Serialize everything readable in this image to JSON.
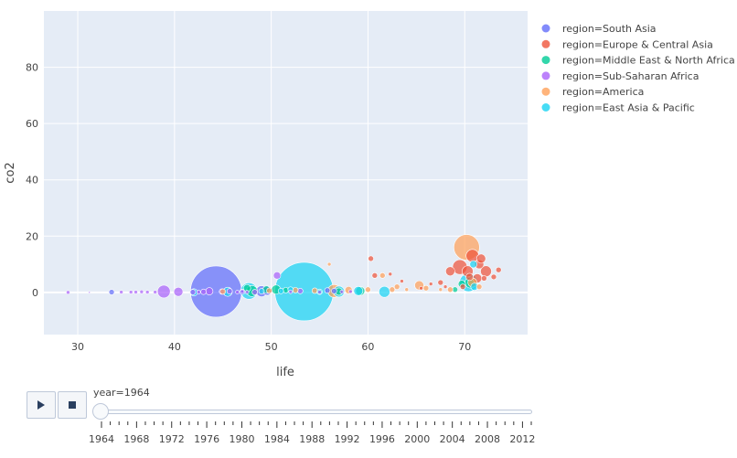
{
  "chart_data": {
    "type": "scatter",
    "title": "",
    "xlabel": "life",
    "ylabel": "co2",
    "xlim": [
      26.5,
      76.5
    ],
    "ylim": [
      -15,
      100
    ],
    "x_ticks": [
      30,
      40,
      50,
      60,
      70
    ],
    "y_ticks": [
      0,
      20,
      40,
      60,
      80
    ],
    "grid": true,
    "legend_position": "right",
    "series": [
      {
        "name": "region=South Asia",
        "color": "#636efa",
        "points": [
          [
            33.5,
            0.1,
            3
          ],
          [
            44.3,
            0.3,
            28
          ],
          [
            49.0,
            0.4,
            6
          ],
          [
            49.6,
            0.6,
            5
          ],
          [
            55.8,
            0.7,
            3
          ],
          [
            56.5,
            0.5,
            3
          ],
          [
            47.0,
            0.2,
            3
          ]
        ]
      },
      {
        "name": "region=Europe & Central Asia",
        "color": "#ef553b",
        "points": [
          [
            60.3,
            12.0,
            3
          ],
          [
            60.7,
            6.0,
            3
          ],
          [
            62.3,
            6.5,
            2
          ],
          [
            65.5,
            1.5,
            2
          ],
          [
            67.5,
            3.5,
            3
          ],
          [
            68.5,
            7.5,
            5
          ],
          [
            69.5,
            9.0,
            8
          ],
          [
            70.3,
            7.5,
            6
          ],
          [
            70.8,
            13.0,
            7
          ],
          [
            71.3,
            5.0,
            5
          ],
          [
            71.5,
            10.0,
            5
          ],
          [
            71.7,
            12.0,
            5
          ],
          [
            72.2,
            7.5,
            6
          ],
          [
            72.0,
            5.0,
            3
          ],
          [
            73.0,
            5.5,
            3
          ],
          [
            73.5,
            8.0,
            3
          ],
          [
            69.8,
            2.0,
            3
          ],
          [
            70.5,
            5.5,
            4
          ],
          [
            63.5,
            4.0,
            2
          ],
          [
            66.5,
            3.0,
            2
          ],
          [
            68.0,
            2.0,
            2
          ]
        ]
      },
      {
        "name": "region=Middle East & North Africa",
        "color": "#00cc96",
        "points": [
          [
            47.5,
            1.5,
            4
          ],
          [
            48.0,
            0.5,
            6
          ],
          [
            49.5,
            1.0,
            4
          ],
          [
            50.5,
            1.0,
            5
          ],
          [
            51.5,
            0.8,
            3
          ],
          [
            59.2,
            0.5,
            5
          ],
          [
            57.0,
            0.3,
            4
          ],
          [
            70.6,
            3.5,
            6
          ],
          [
            69.7,
            3.0,
            4
          ],
          [
            69.0,
            1.0,
            3
          ]
        ]
      },
      {
        "name": "region=Sub-Saharan Africa",
        "color": "#ab63fa",
        "points": [
          [
            29.0,
            0.0,
            2
          ],
          [
            31.2,
            0.0,
            1
          ],
          [
            34.5,
            0.1,
            2
          ],
          [
            35.5,
            0.1,
            2
          ],
          [
            36.0,
            0.1,
            2
          ],
          [
            36.6,
            0.2,
            2
          ],
          [
            38.9,
            0.3,
            7
          ],
          [
            40.4,
            0.2,
            5
          ],
          [
            41.9,
            0.1,
            3
          ],
          [
            42.5,
            0.1,
            2
          ],
          [
            43.0,
            0.2,
            3
          ],
          [
            43.6,
            0.4,
            4
          ],
          [
            44.9,
            0.3,
            3
          ],
          [
            45.7,
            0.4,
            3
          ],
          [
            46.5,
            0.1,
            2
          ],
          [
            47.0,
            0.3,
            2
          ],
          [
            47.5,
            0.1,
            2
          ],
          [
            48.3,
            0.1,
            3
          ],
          [
            50.6,
            6.0,
            4
          ],
          [
            52.0,
            0.2,
            2
          ],
          [
            53.0,
            0.5,
            3
          ],
          [
            55.0,
            0.1,
            2
          ],
          [
            57.3,
            0.2,
            2
          ],
          [
            58.2,
            0.3,
            2
          ],
          [
            37.2,
            0.1,
            2
          ],
          [
            38.0,
            0.1,
            2
          ]
        ]
      },
      {
        "name": "region=America",
        "color": "#ffa15a",
        "points": [
          [
            56.0,
            10.0,
            2
          ],
          [
            56.5,
            0.5,
            7
          ],
          [
            58.0,
            0.8,
            4
          ],
          [
            60.0,
            1.0,
            3
          ],
          [
            61.5,
            6.0,
            3
          ],
          [
            62.5,
            1.0,
            3
          ],
          [
            63.0,
            2.0,
            3
          ],
          [
            64.0,
            1.0,
            2
          ],
          [
            65.3,
            2.5,
            5
          ],
          [
            66.0,
            1.5,
            3
          ],
          [
            67.5,
            1.0,
            2
          ],
          [
            70.2,
            16.0,
            14
          ],
          [
            70.8,
            3.5,
            5
          ],
          [
            71.5,
            2.0,
            3
          ],
          [
            45.0,
            0.3,
            3
          ],
          [
            49.8,
            0.6,
            3
          ],
          [
            52.5,
            0.8,
            3
          ],
          [
            54.5,
            0.6,
            3
          ],
          [
            68.5,
            1.0,
            3
          ]
        ]
      },
      {
        "name": "region=East Asia & Pacific",
        "color": "#19d3f3",
        "points": [
          [
            42.0,
            0.0,
            4
          ],
          [
            45.5,
            0.2,
            5
          ],
          [
            47.7,
            0.5,
            9
          ],
          [
            53.4,
            0.3,
            32
          ],
          [
            57.0,
            0.3,
            6
          ],
          [
            59.0,
            0.5,
            5
          ],
          [
            61.7,
            0.2,
            6
          ],
          [
            70.4,
            3.5,
            10
          ],
          [
            70.9,
            10.0,
            4
          ],
          [
            71.0,
            2.0,
            4
          ],
          [
            52.0,
            1.0,
            3
          ],
          [
            51.0,
            0.5,
            3
          ],
          [
            55.0,
            0.2,
            3
          ],
          [
            49.0,
            0.4,
            3
          ]
        ]
      }
    ]
  },
  "animation": {
    "play_icon": "play-icon",
    "stop_icon": "stop-icon",
    "current_label": "year=1964",
    "year_start": 1964,
    "year_end": 2013,
    "year_labels": [
      "1964",
      "1968",
      "1972",
      "1976",
      "1980",
      "1984",
      "1988",
      "1992",
      "1996",
      "2000",
      "2004",
      "2008",
      "2012"
    ]
  }
}
